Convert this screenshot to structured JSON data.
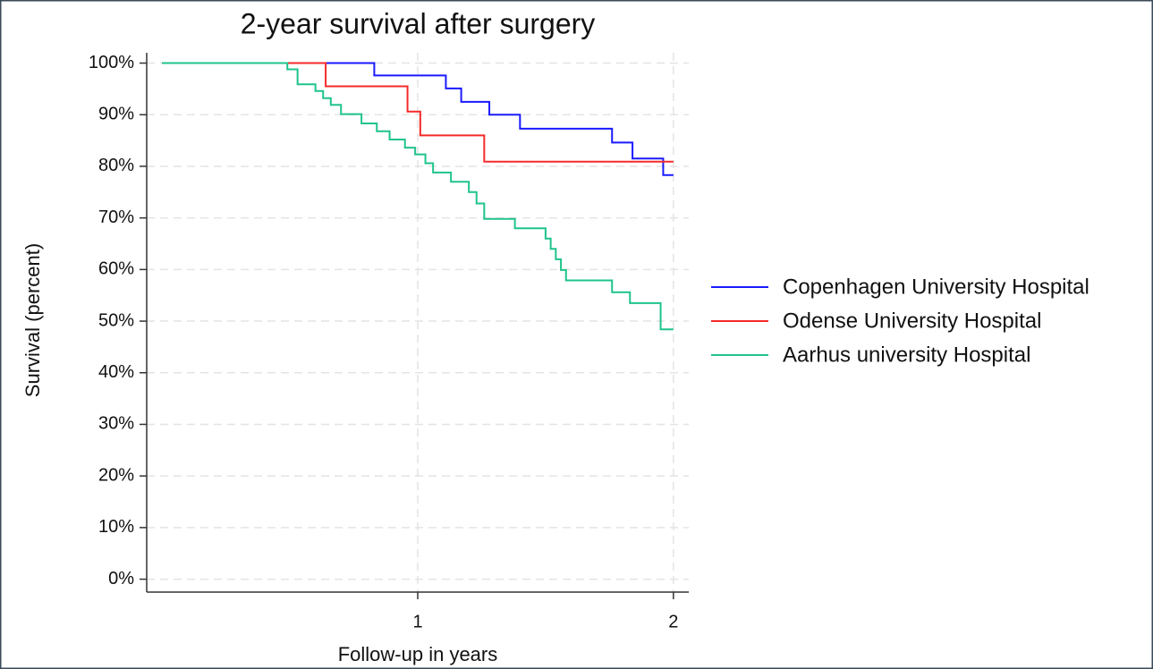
{
  "chart_data": {
    "type": "step",
    "title": "2-year survival after surgery",
    "xlabel": "Follow-up in years",
    "ylabel": "Survival (percent)",
    "xlim": [
      -0.06,
      2.06
    ],
    "xticks": [
      1,
      2
    ],
    "ylim": [
      -2.5,
      102
    ],
    "yticks": [
      {
        "value": 0,
        "label": "0%"
      },
      {
        "value": 10,
        "label": "10%"
      },
      {
        "value": 20,
        "label": "20%"
      },
      {
        "value": 30,
        "label": "30%"
      },
      {
        "value": 40,
        "label": "40%"
      },
      {
        "value": 50,
        "label": "50%"
      },
      {
        "value": 60,
        "label": "60%"
      },
      {
        "value": 70,
        "label": "70%"
      },
      {
        "value": 80,
        "label": "80%"
      },
      {
        "value": 90,
        "label": "90%"
      },
      {
        "value": 100,
        "label": "100%"
      }
    ],
    "grid": true,
    "legend": "right",
    "series": [
      {
        "name": "Copenhagen University Hospital",
        "color": "#1a1aff",
        "x": [
          0,
          0.83,
          1.11,
          1.17,
          1.28,
          1.4,
          1.76,
          1.84,
          1.96,
          2.0
        ],
        "values": [
          100,
          97.6,
          95.1,
          92.5,
          90,
          87.3,
          84.6,
          81.5,
          78.3,
          78.3
        ]
      },
      {
        "name": "Odense University Hospital",
        "color": "#f52a2a",
        "x": [
          0,
          0.64,
          0.96,
          1.01,
          1.26,
          2.0
        ],
        "values": [
          100,
          95.5,
          90.6,
          86,
          80.9,
          80.9
        ]
      },
      {
        "name": "Aarhus university Hospital",
        "color": "#1fc48a",
        "x": [
          0,
          0.49,
          0.53,
          0.6,
          0.63,
          0.66,
          0.7,
          0.78,
          0.84,
          0.89,
          0.95,
          0.99,
          1.03,
          1.06,
          1.13,
          1.2,
          1.23,
          1.26,
          1.38,
          1.5,
          1.52,
          1.54,
          1.56,
          1.58,
          1.76,
          1.83,
          1.95,
          2.0
        ],
        "values": [
          100,
          98.8,
          95.9,
          94.6,
          93.2,
          91.9,
          90.1,
          88.3,
          86.8,
          85.2,
          83.6,
          82.3,
          80.6,
          78.8,
          77,
          75,
          72.8,
          69.8,
          68,
          66,
          64,
          62,
          59.9,
          57.9,
          55.6,
          53.5,
          48.4,
          48.4
        ]
      }
    ]
  }
}
